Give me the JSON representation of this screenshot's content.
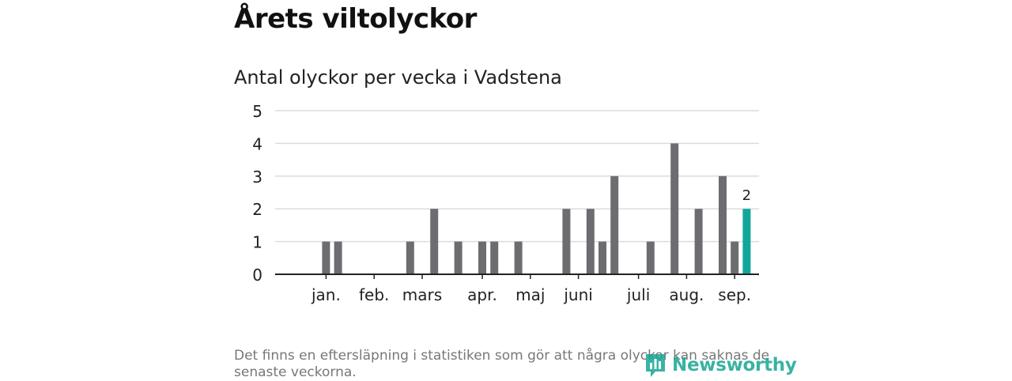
{
  "header": {
    "title": "Årets viltolyckor",
    "subtitle": "Antal olyckor per vecka i Vadstena"
  },
  "footnote": "Det finns en eftersläpning i statistiken som gör att några olyckor kan saknas de senaste veckorna.",
  "logo": {
    "text": "Newsworthy"
  },
  "colors": {
    "bar": "#6d6c70",
    "highlight": "#11a69a",
    "grid": "#dcdcdc",
    "axis": "#222222"
  },
  "chart_data": {
    "type": "bar",
    "title": "Antal olyckor per vecka i Vadstena",
    "xlabel": "",
    "ylabel": "",
    "ylim": [
      0,
      5
    ],
    "yticks": [
      0,
      1,
      2,
      3,
      4,
      5
    ],
    "grid": true,
    "weeks": [
      1,
      2,
      3,
      4,
      5,
      6,
      7,
      8,
      9,
      10,
      11,
      12,
      13,
      14,
      15,
      16,
      17,
      18,
      19,
      20,
      21,
      22,
      23,
      24,
      25,
      26,
      27,
      28,
      29,
      30,
      31,
      32,
      33,
      34,
      35,
      36,
      37,
      38,
      39,
      40
    ],
    "values": [
      0,
      0,
      1,
      1,
      0,
      0,
      0,
      0,
      0,
      1,
      0,
      2,
      0,
      1,
      0,
      1,
      1,
      0,
      1,
      0,
      0,
      0,
      2,
      0,
      2,
      1,
      3,
      0,
      0,
      1,
      0,
      4,
      0,
      2,
      0,
      3,
      1,
      2,
      0,
      0
    ],
    "highlight_week": 38,
    "highlight_label": "2",
    "month_labels": [
      {
        "label": "jan.",
        "week": 3
      },
      {
        "label": "feb.",
        "week": 7
      },
      {
        "label": "mars",
        "week": 11
      },
      {
        "label": "apr.",
        "week": 16
      },
      {
        "label": "maj",
        "week": 20
      },
      {
        "label": "juni",
        "week": 24
      },
      {
        "label": "juli",
        "week": 29
      },
      {
        "label": "aug.",
        "week": 33
      },
      {
        "label": "sep.",
        "week": 37
      }
    ]
  }
}
